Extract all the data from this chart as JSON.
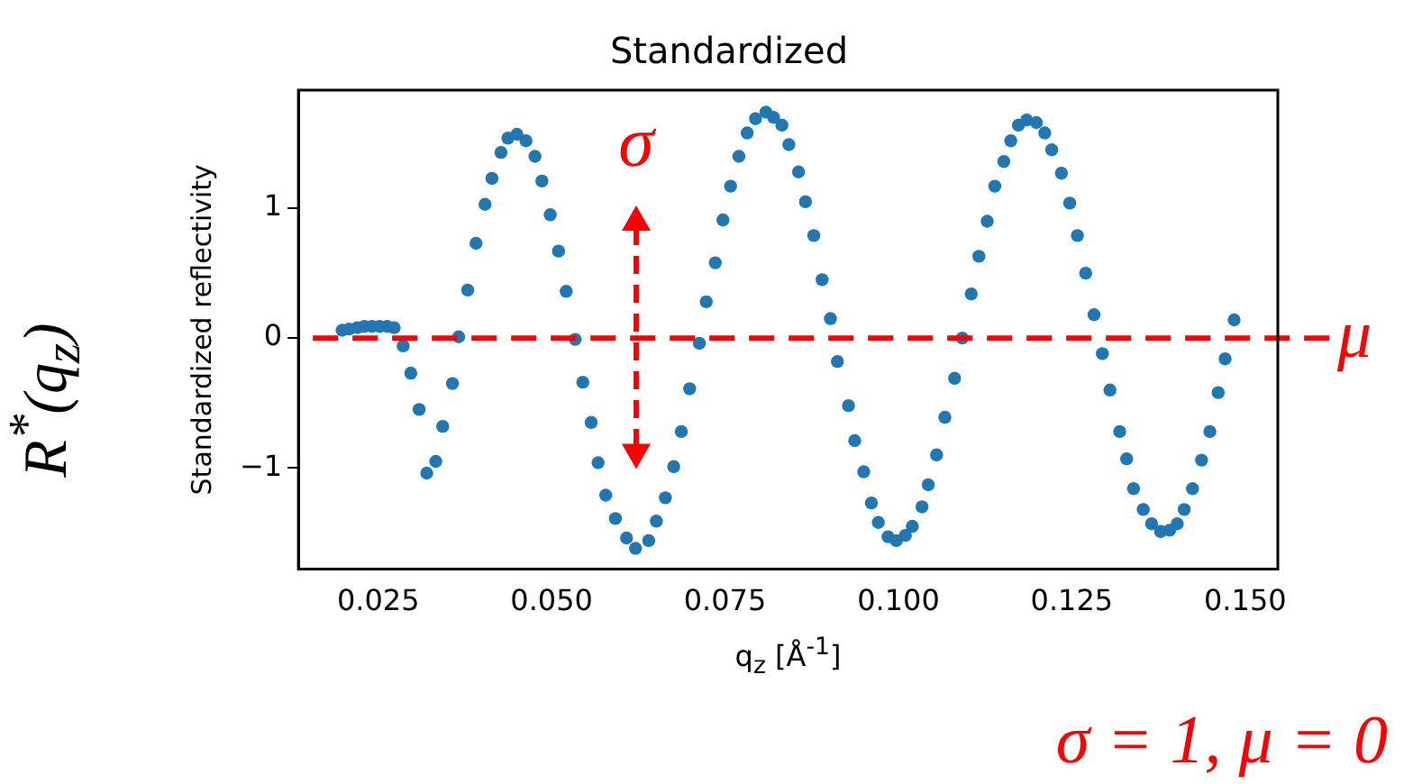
{
  "chart_data": {
    "type": "scatter",
    "title": "Standardized",
    "xlabel": "q$_{z}$ [Å$^{-1}$]",
    "ylabel": "Standardized reflectivity",
    "annotations": [
      "R$^{*}$(q$_{z}$)",
      "σ",
      "σ = 1, μ = 0"
    ],
    "xlim": [
      0.0135,
      0.1547
    ],
    "ylim": [
      -1.78,
      1.91
    ],
    "xticks": [
      0.025,
      {
        "value": 0.05,
        "label": "0.050"
      },
      0.075,
      {
        "value": 0.1,
        "label": "0.100"
      },
      0.125,
      {
        "value": 0.15,
        "label": "0.150"
      }
    ],
    "yticks": [
      -1,
      0,
      1
    ],
    "grid": false,
    "legend": false,
    "marker": "circle",
    "ref_lines": [
      {
        "axis": "y",
        "value": 0,
        "label": "μ",
        "color": "#ff0000",
        "line_style": "dashed"
      }
    ],
    "series": [
      {
        "color": "#1f77b4",
        "x": [
          0.0198,
          0.0208,
          0.022,
          0.023,
          0.0241,
          0.0252,
          0.0263,
          0.0273,
          0.0286,
          0.0297,
          0.0309,
          0.032,
          0.0333,
          0.0343,
          0.0357,
          0.0366,
          0.0379,
          0.0391,
          0.0404,
          0.0414,
          0.0427,
          0.0437,
          0.045,
          0.0463,
          0.0476,
          0.0486,
          0.0498,
          0.051,
          0.0521,
          0.0534,
          0.0545,
          0.0557,
          0.0567,
          0.0578,
          0.0592,
          0.0608,
          0.0621,
          0.064,
          0.0651,
          0.0664,
          0.0676,
          0.0687,
          0.0699,
          0.0713,
          0.0723,
          0.0736,
          0.0747,
          0.0758,
          0.077,
          0.0782,
          0.0794,
          0.0809,
          0.082,
          0.0832,
          0.0842,
          0.0856,
          0.0866,
          0.0878,
          0.089,
          0.0902,
          0.0912,
          0.0928,
          0.0937,
          0.095,
          0.0961,
          0.0971,
          0.0985,
          0.0997,
          0.101,
          0.102,
          0.1034,
          0.1043,
          0.1055,
          0.1067,
          0.1081,
          0.1092,
          0.1105,
          0.1116,
          0.1128,
          0.1139,
          0.1152,
          0.1162,
          0.1173,
          0.1185,
          0.1199,
          0.1211,
          0.1221,
          0.1235,
          0.1247,
          0.1258,
          0.127,
          0.1282,
          0.1294,
          0.1305,
          0.1319,
          0.1329,
          0.1339,
          0.1353,
          0.1365,
          0.1378,
          0.1391,
          0.1402,
          0.1412,
          0.1424,
          0.1437,
          0.1449,
          0.1461,
          0.1471,
          0.1484
        ],
        "values": [
          0.06,
          0.07,
          0.08,
          0.09,
          0.09,
          0.09,
          0.09,
          0.08,
          -0.06,
          -0.27,
          -0.55,
          -1.04,
          -0.95,
          -0.68,
          -0.35,
          0.01,
          0.37,
          0.73,
          1.03,
          1.23,
          1.43,
          1.54,
          1.57,
          1.52,
          1.4,
          1.21,
          0.95,
          0.67,
          0.36,
          -0.01,
          -0.34,
          -0.65,
          -0.96,
          -1.21,
          -1.39,
          -1.54,
          -1.62,
          -1.56,
          -1.41,
          -1.23,
          -0.99,
          -0.72,
          -0.39,
          -0.04,
          0.28,
          0.58,
          0.91,
          1.17,
          1.4,
          1.58,
          1.69,
          1.74,
          1.7,
          1.64,
          1.49,
          1.28,
          1.05,
          0.79,
          0.45,
          0.15,
          -0.18,
          -0.52,
          -0.79,
          -1.03,
          -1.27,
          -1.42,
          -1.53,
          -1.56,
          -1.52,
          -1.45,
          -1.3,
          -1.13,
          -0.9,
          -0.61,
          -0.31,
          0.0,
          0.34,
          0.63,
          0.9,
          1.17,
          1.36,
          1.52,
          1.64,
          1.68,
          1.66,
          1.58,
          1.45,
          1.27,
          1.04,
          0.79,
          0.5,
          0.18,
          -0.12,
          -0.4,
          -0.72,
          -0.93,
          -1.16,
          -1.32,
          -1.43,
          -1.49,
          -1.48,
          -1.43,
          -1.32,
          -1.16,
          -0.94,
          -0.72,
          -0.42,
          -0.16,
          0.14
        ]
      }
    ]
  }
}
